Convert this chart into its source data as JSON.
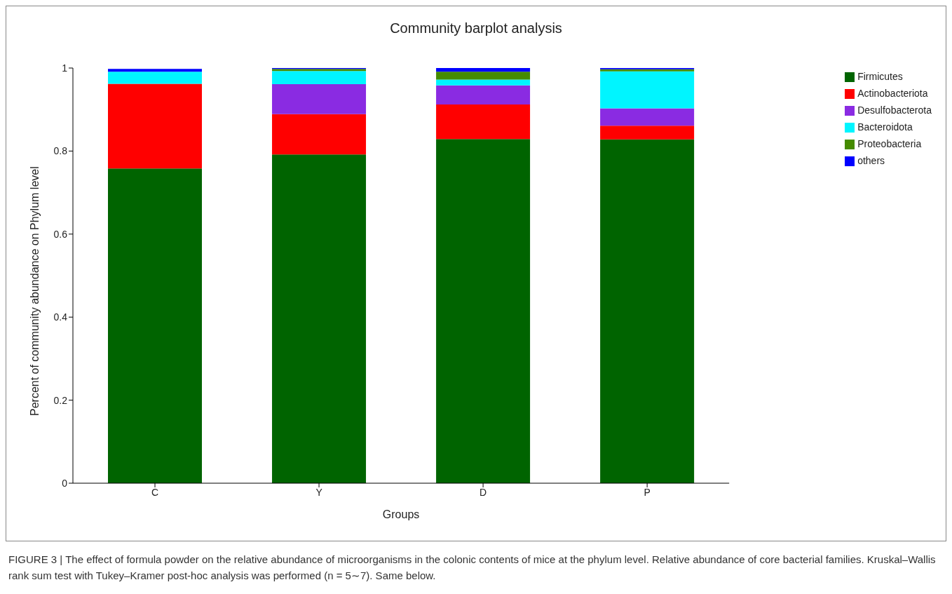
{
  "chart_data": {
    "type": "bar",
    "stacked": true,
    "title": "Community barplot analysis",
    "xlabel": "Groups",
    "ylabel": "Percent of community abundance on Phylum level",
    "categories": [
      "C",
      "Y",
      "D",
      "P"
    ],
    "series": [
      {
        "name": "Firmicutes",
        "color": "#006400",
        "values": [
          0.758,
          0.792,
          0.829,
          0.828
        ]
      },
      {
        "name": "Actinobacteriota",
        "color": "#ff0000",
        "values": [
          0.204,
          0.097,
          0.083,
          0.033
        ]
      },
      {
        "name": "Desulfobacterota",
        "color": "#8a2be2",
        "values": [
          null,
          0.072,
          0.046,
          0.042
        ]
      },
      {
        "name": "Bacteroidota",
        "color": "#00f5ff",
        "values": [
          0.029,
          0.032,
          0.014,
          0.089
        ]
      },
      {
        "name": "Proteobacteria",
        "color": "#458b00",
        "values": [
          null,
          0.005,
          0.019,
          0.005
        ]
      },
      {
        "name": "others",
        "color": "#0000ff",
        "values": [
          0.007,
          0.002,
          0.009,
          0.003
        ]
      }
    ],
    "ylim": [
      0,
      1
    ],
    "yticks": [
      0,
      0.2,
      0.4,
      0.6,
      0.8,
      1
    ],
    "grid": false,
    "legend": "right",
    "annotations": [
      "FIGURE 3 | The effect of formula powder on the relative abundance of microorganisms in the colonic contents of mice at the phylum level. Relative abundance of core bacterial families. Kruskal–Wallis rank sum test with Tukey–Kramer post-hoc analysis was performed (n = 5∼7). Same below."
    ]
  }
}
